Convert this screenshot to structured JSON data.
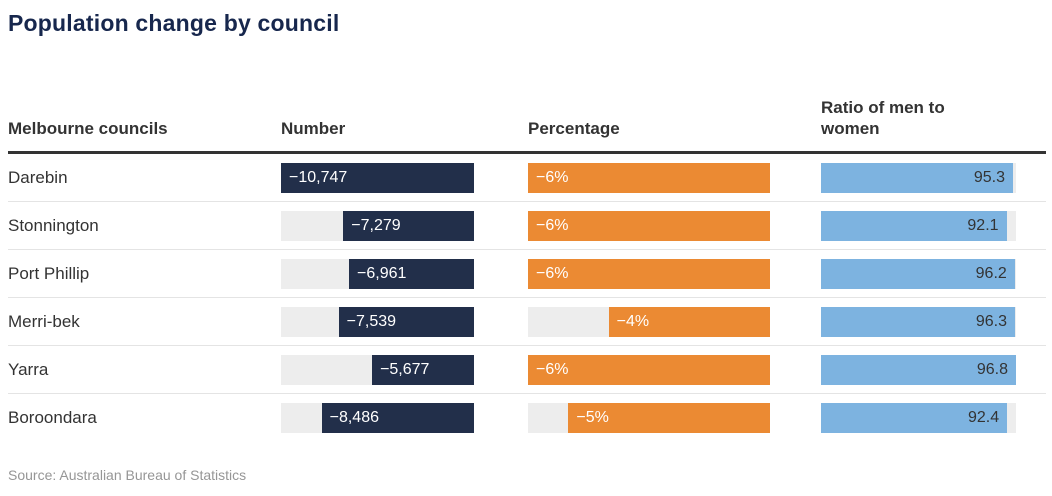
{
  "title": "Population change by council",
  "header": {
    "council": "Melbourne councils",
    "number": "Number",
    "percentage": "Percentage",
    "ratio": "Ratio of men to women"
  },
  "source": "Source: Australian Bureau of Statistics",
  "colors": {
    "title_navy": "#17274d",
    "bar_navy": "#222f4a",
    "bar_orange": "#eb8a33",
    "bar_blue": "#7db3e0",
    "bar_track_gray": "#ededed",
    "header_text": "#333333",
    "rule_dark": "#333333",
    "row_divider": "#e4e4e4",
    "source_gray": "#969696"
  },
  "chart_data": {
    "type": "table",
    "title": "Population change by council",
    "columns": [
      "Melbourne councils",
      "Number",
      "Percentage",
      "Ratio of men to women"
    ],
    "bar_columns": {
      "number": {
        "type": "bar",
        "anchor": "right",
        "axis_max_abs": 10747
      },
      "percentage": {
        "type": "bar",
        "anchor": "right",
        "axis_max_abs": 6
      },
      "ratio": {
        "type": "bar",
        "anchor": "left",
        "axis_max_abs": 96.8
      }
    },
    "rows": [
      {
        "council": "Darebin",
        "number": -10747,
        "number_label": "−10,747",
        "percentage": -6,
        "percentage_label": "−6%",
        "ratio": 95.3,
        "ratio_label": "95.3"
      },
      {
        "council": "Stonnington",
        "number": -7279,
        "number_label": "−7,279",
        "percentage": -6,
        "percentage_label": "−6%",
        "ratio": 92.1,
        "ratio_label": "92.1"
      },
      {
        "council": "Port Phillip",
        "number": -6961,
        "number_label": "−6,961",
        "percentage": -6,
        "percentage_label": "−6%",
        "ratio": 96.2,
        "ratio_label": "96.2"
      },
      {
        "council": "Merri-bek",
        "number": -7539,
        "number_label": "−7,539",
        "percentage": -4,
        "percentage_label": "−4%",
        "ratio": 96.3,
        "ratio_label": "96.3"
      },
      {
        "council": "Yarra",
        "number": -5677,
        "number_label": "−5,677",
        "percentage": -6,
        "percentage_label": "−6%",
        "ratio": 96.8,
        "ratio_label": "96.8"
      },
      {
        "council": "Boroondara",
        "number": -8486,
        "number_label": "−8,486",
        "percentage": -5,
        "percentage_label": "−5%",
        "ratio": 92.4,
        "ratio_label": "92.4"
      }
    ],
    "source": "Source: Australian Bureau of Statistics"
  }
}
